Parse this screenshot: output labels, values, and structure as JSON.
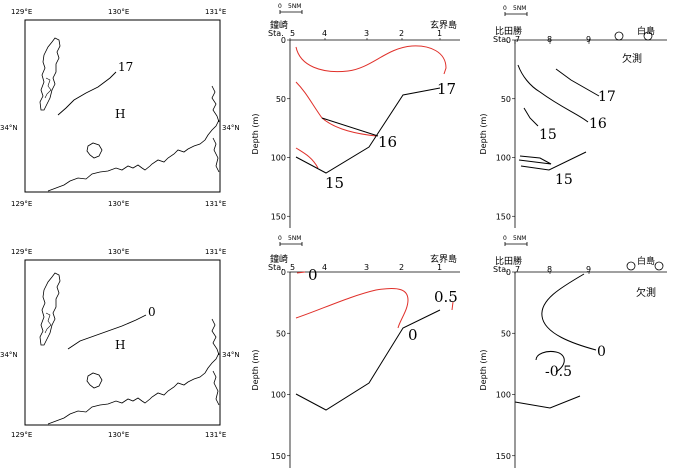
{
  "maps": [
    {
      "corner_labels": {
        "top_left": "129°E",
        "top_mid": "130°E",
        "top_right": "131°E",
        "bottom_left": "129°E",
        "bottom_mid": "130°E",
        "bottom_right": "131°E"
      },
      "lat_left": "34°N",
      "lat_right": "34°N",
      "isoline_label": "17",
      "marker": "H"
    },
    {
      "corner_labels": {
        "top_left": "129°E",
        "top_mid": "130°E",
        "top_right": "131°E",
        "bottom_left": "129°E",
        "bottom_mid": "130°E",
        "bottom_right": "131°E"
      },
      "lat_left": "34°N",
      "lat_right": "34°N",
      "isoline_label": "0",
      "marker": "H"
    }
  ],
  "chart_data": [
    {
      "type": "line",
      "panel": "top-middle",
      "scale_bar": {
        "left": "0",
        "right": "5NM"
      },
      "left_place": "鐘崎",
      "right_place": "玄界島",
      "station_prefix": "Sta.",
      "stations": [
        "5",
        "4",
        "3",
        "2",
        "1"
      ],
      "ylabel": "Depth (m)",
      "yticks": [
        "0",
        "50",
        "100",
        "150"
      ],
      "ylim": [
        0,
        160
      ],
      "contour_labels": [
        "17",
        "16",
        "15"
      ],
      "missing_text": ""
    },
    {
      "type": "line",
      "panel": "top-right",
      "scale_bar": {
        "left": "0",
        "right": "5NM"
      },
      "left_place": "比田勝",
      "right_place": "白島",
      "station_prefix": "Sta.",
      "stations": [
        "7",
        "8",
        "9"
      ],
      "ylabel": "Depth (m)",
      "yticks": [
        "0",
        "50",
        "100",
        "150"
      ],
      "ylim": [
        0,
        160
      ],
      "contour_labels": [
        "17",
        "16",
        "15",
        "15"
      ],
      "missing_text": "欠測"
    },
    {
      "type": "line",
      "panel": "bottom-middle",
      "scale_bar": {
        "left": "0",
        "right": "5NM"
      },
      "left_place": "鐘崎",
      "right_place": "玄界島",
      "station_prefix": "Sta.",
      "stations": [
        "5",
        "4",
        "3",
        "2",
        "1"
      ],
      "ylabel": "Depth (m)",
      "yticks": [
        "0",
        "50",
        "100",
        "150"
      ],
      "ylim": [
        0,
        160
      ],
      "contour_labels": [
        "0",
        "0.5",
        "0"
      ],
      "missing_text": ""
    },
    {
      "type": "line",
      "panel": "bottom-right",
      "scale_bar": {
        "left": "0",
        "right": "5NM"
      },
      "left_place": "比田勝",
      "right_place": "白島",
      "station_prefix": "Sta.",
      "stations": [
        "7",
        "8",
        "9"
      ],
      "ylabel": "Depth (m)",
      "yticks": [
        "0",
        "50",
        "100",
        "150"
      ],
      "ylim": [
        0,
        160
      ],
      "contour_labels": [
        "0",
        "-0.5"
      ],
      "missing_text": "欠測"
    }
  ],
  "colors": {
    "line": "#000000",
    "red": "#e0302a",
    "frame": "#000000"
  }
}
